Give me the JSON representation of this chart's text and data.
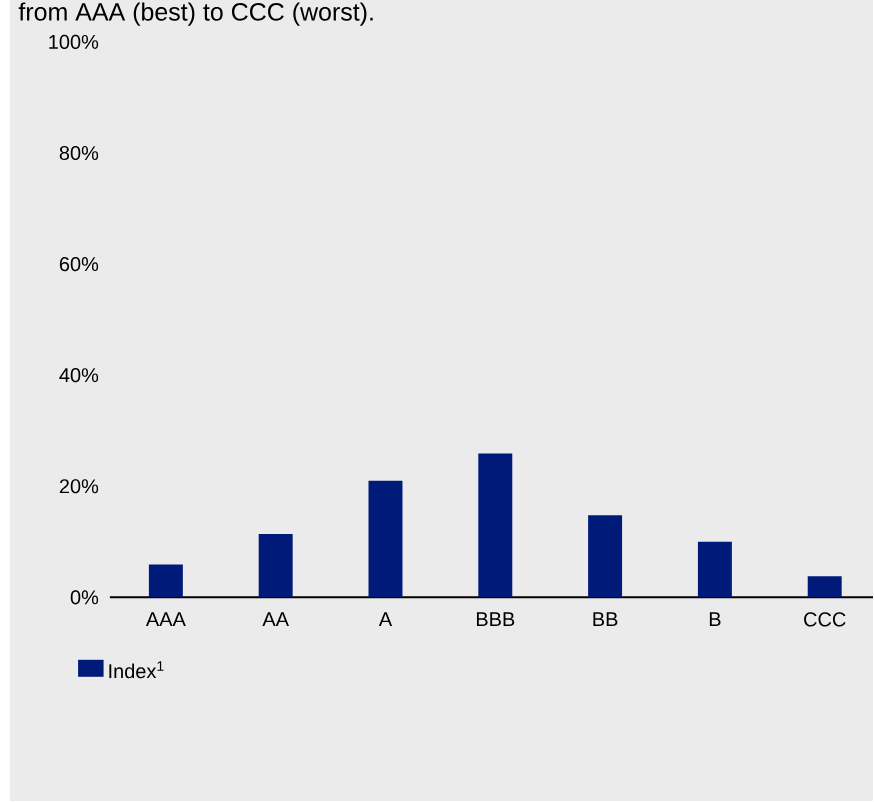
{
  "chart_data": {
    "type": "bar",
    "subtitle": "from AAA (best) to CCC (worst).",
    "categories": [
      "AAA",
      "AA",
      "A",
      "BBB",
      "BB",
      "B",
      "CCC"
    ],
    "series": [
      {
        "name": "Index$^{1}$",
        "color": "#001a7a",
        "values": [
          5.9,
          11.4,
          21,
          25.9,
          14.8,
          10,
          3.8
        ]
      }
    ],
    "ylim": [
      0,
      100
    ],
    "yticks": [
      {
        "value": 0,
        "label": "0%"
      },
      {
        "value": 20,
        "label": "20%"
      },
      {
        "value": 40,
        "label": "40%"
      },
      {
        "value": 60,
        "label": "60%"
      },
      {
        "value": 80,
        "label": "80%"
      },
      {
        "value": 100,
        "label": "100%"
      }
    ],
    "legend": "bottom left"
  }
}
